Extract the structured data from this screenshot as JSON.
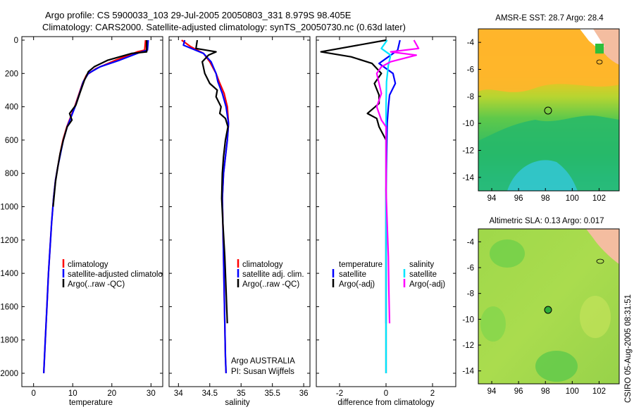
{
  "title": {
    "line1": "Argo profile: CS 5900033_103 29-Jul-2005 20050803_331 8.979S 98.405E",
    "line2": "Climatology: CARS2000. Satellite-adjusted climatology: synTS_20050730.nc (0.63d later)"
  },
  "side_label": "CSIRO 05-Aug-2005 08:31:51",
  "colors": {
    "red": "#ff0000",
    "blue": "#0000ff",
    "black": "#000000",
    "cyan": "#00e5ff",
    "magenta": "#ff00ff"
  },
  "chart_data": [
    {
      "type": "line",
      "name": "temperature-panel",
      "xlabel": "temperature",
      "xlim": [
        -3,
        33
      ],
      "ylim": [
        0,
        2100
      ],
      "y_reversed": true,
      "xticks": [
        0,
        10,
        20,
        30
      ],
      "yticks": [
        0,
        200,
        400,
        600,
        800,
        1000,
        1200,
        1400,
        1600,
        1800,
        2000
      ],
      "legend": [
        "climatology",
        "satellite-adjusted climatology",
        "Argo(..raw -QC)"
      ],
      "series": [
        {
          "name": "climatology",
          "color": "red",
          "points": [
            [
              28.6,
              0
            ],
            [
              28.4,
              60
            ],
            [
              26.5,
              70
            ],
            [
              21,
              120
            ],
            [
              16,
              170
            ],
            [
              13.5,
              210
            ],
            [
              12.5,
              260
            ],
            [
              11.5,
              330
            ],
            [
              10.5,
              400
            ],
            [
              9.5,
              460
            ],
            [
              8.5,
              520
            ],
            [
              7.5,
              600
            ],
            [
              6.8,
              680
            ],
            [
              6.2,
              760
            ],
            [
              5.6,
              840
            ],
            [
              5.1,
              950
            ],
            [
              4.6,
              1100
            ],
            [
              4.2,
              1250
            ],
            [
              3.8,
              1400
            ],
            [
              3.4,
              1600
            ],
            [
              3.0,
              1800
            ],
            [
              2.6,
              2000
            ]
          ]
        },
        {
          "name": "satellite-adjusted climatology",
          "color": "blue",
          "points": [
            [
              29.3,
              0
            ],
            [
              29.1,
              60
            ],
            [
              27,
              75
            ],
            [
              22,
              120
            ],
            [
              17,
              160
            ],
            [
              14,
              200
            ],
            [
              12.7,
              250
            ],
            [
              11.6,
              330
            ],
            [
              10.6,
              400
            ],
            [
              9.6,
              460
            ],
            [
              8.6,
              520
            ],
            [
              7.6,
              600
            ],
            [
              6.9,
              680
            ],
            [
              6.2,
              760
            ],
            [
              5.6,
              840
            ],
            [
              5.1,
              950
            ],
            [
              4.6,
              1100
            ],
            [
              4.2,
              1250
            ],
            [
              3.8,
              1400
            ],
            [
              3.4,
              1600
            ],
            [
              3.0,
              1800
            ],
            [
              2.6,
              2000
            ]
          ]
        },
        {
          "name": "Argo(..raw -QC)",
          "color": "black",
          "points": [
            [
              28.9,
              0
            ],
            [
              28.9,
              70
            ],
            [
              25,
              80
            ],
            [
              19,
              120
            ],
            [
              15.5,
              160
            ],
            [
              14,
              190
            ],
            [
              13,
              240
            ],
            [
              11.8,
              320
            ],
            [
              10.8,
              390
            ],
            [
              9.2,
              440
            ],
            [
              9.8,
              480
            ],
            [
              8.6,
              520
            ],
            [
              7.6,
              600
            ],
            [
              6.8,
              680
            ],
            [
              6.2,
              760
            ],
            [
              5.6,
              850
            ],
            [
              5.0,
              1000
            ]
          ]
        }
      ]
    },
    {
      "type": "line",
      "name": "salinity-panel",
      "xlabel": "salinity",
      "xlim": [
        33.85,
        36.1
      ],
      "ylim": [
        0,
        2100
      ],
      "y_reversed": true,
      "xticks": [
        34,
        34.5,
        35,
        35.5,
        36
      ],
      "legend": [
        "climatology",
        "satellite adj. clim.",
        "Argo(..raw -QC)"
      ],
      "annotations": [
        "Argo AUSTRALIA",
        "PI: Susan Wijffels"
      ],
      "series": [
        {
          "name": "climatology",
          "color": "red",
          "points": [
            [
              34.05,
              0
            ],
            [
              34.2,
              40
            ],
            [
              34.4,
              80
            ],
            [
              34.5,
              130
            ],
            [
              34.6,
              200
            ],
            [
              34.65,
              250
            ],
            [
              34.73,
              320
            ],
            [
              34.78,
              400
            ],
            [
              34.8,
              500
            ],
            [
              34.78,
              600
            ],
            [
              34.75,
              700
            ],
            [
              34.72,
              800
            ],
            [
              34.7,
              950
            ],
            [
              34.71,
              1100
            ],
            [
              34.72,
              1300
            ],
            [
              34.73,
              1500
            ],
            [
              34.74,
              1700
            ],
            [
              34.75,
              1900
            ],
            [
              34.76,
              2000
            ]
          ]
        },
        {
          "name": "satellite adj. clim.",
          "color": "blue",
          "points": [
            [
              34.1,
              0
            ],
            [
              34.08,
              30
            ],
            [
              34.4,
              80
            ],
            [
              34.52,
              130
            ],
            [
              34.6,
              200
            ],
            [
              34.63,
              250
            ],
            [
              34.7,
              320
            ],
            [
              34.76,
              400
            ],
            [
              34.8,
              500
            ],
            [
              34.78,
              600
            ],
            [
              34.75,
              700
            ],
            [
              34.72,
              800
            ],
            [
              34.7,
              950
            ],
            [
              34.71,
              1100
            ],
            [
              34.72,
              1300
            ],
            [
              34.73,
              1500
            ],
            [
              34.74,
              1700
            ],
            [
              34.75,
              1900
            ],
            [
              34.76,
              2000
            ]
          ]
        },
        {
          "name": "Argo(..raw -QC)",
          "color": "black",
          "points": [
            [
              34.3,
              0
            ],
            [
              34.28,
              50
            ],
            [
              34.6,
              70
            ],
            [
              34.48,
              90
            ],
            [
              34.38,
              130
            ],
            [
              34.42,
              200
            ],
            [
              34.5,
              260
            ],
            [
              34.62,
              300
            ],
            [
              34.6,
              340
            ],
            [
              34.68,
              400
            ],
            [
              34.66,
              440
            ],
            [
              34.75,
              470
            ],
            [
              34.79,
              520
            ],
            [
              34.75,
              600
            ],
            [
              34.72,
              700
            ],
            [
              34.7,
              800
            ],
            [
              34.69,
              950
            ],
            [
              34.71,
              1100
            ],
            [
              34.74,
              1300
            ],
            [
              34.76,
              1500
            ],
            [
              34.78,
              1700
            ]
          ]
        }
      ]
    },
    {
      "type": "line",
      "name": "difference-panel",
      "xlabel": "difference from climatology",
      "xlim": [
        -3,
        3
      ],
      "ylim": [
        0,
        2100
      ],
      "y_reversed": true,
      "xticks": [
        -2,
        0,
        2
      ],
      "legend_left": {
        "title": "temperature",
        "items": [
          "satellite",
          "Argo(-adj)"
        ]
      },
      "legend_right": {
        "title": "salinity",
        "items": [
          "satellite",
          "Argo(-adj)"
        ]
      },
      "series": [
        {
          "name": "temperature satellite",
          "color": "blue",
          "points": [
            [
              0.6,
              0
            ],
            [
              0.5,
              60
            ],
            [
              0.1,
              100
            ],
            [
              -0.3,
              140
            ],
            [
              0.3,
              200
            ],
            [
              0.4,
              260
            ],
            [
              0.15,
              330
            ],
            [
              0.1,
              400
            ],
            [
              0.05,
              500
            ],
            [
              0.02,
              700
            ],
            [
              0.0,
              900
            ],
            [
              0.0,
              1200
            ],
            [
              0.0,
              1500
            ],
            [
              0.0,
              1700
            ]
          ]
        },
        {
          "name": "temperature Argo(-adj)",
          "color": "black",
          "points": [
            [
              0,
              0
            ],
            [
              -2.8,
              70
            ],
            [
              -1.5,
              100
            ],
            [
              -0.6,
              140
            ],
            [
              -0.2,
              200
            ],
            [
              -0.5,
              260
            ],
            [
              -0.3,
              330
            ],
            [
              -0.3,
              380
            ],
            [
              -0.8,
              440
            ],
            [
              -0.4,
              470
            ],
            [
              -0.3,
              520
            ],
            [
              0.0,
              600
            ],
            [
              0.0,
              700
            ],
            [
              0.0,
              800
            ],
            [
              0.0,
              1000
            ],
            [
              0.0,
              1200
            ],
            [
              0.0,
              1400
            ],
            [
              0.0,
              1600
            ],
            [
              0.0,
              1800
            ],
            [
              0.0,
              2000
            ]
          ]
        },
        {
          "name": "salinity satellite",
          "color": "cyan",
          "points": [
            [
              0.05,
              0
            ],
            [
              -0.2,
              50
            ],
            [
              0.2,
              90
            ],
            [
              0.1,
              150
            ],
            [
              0.02,
              250
            ],
            [
              0.0,
              400
            ],
            [
              0.0,
              600
            ],
            [
              0.0,
              800
            ],
            [
              0.0,
              1000
            ],
            [
              0.0,
              1300
            ],
            [
              0.0,
              1600
            ],
            [
              0.0,
              1800
            ],
            [
              0.0,
              2000
            ]
          ]
        },
        {
          "name": "salinity Argo(-adj)",
          "color": "magenta",
          "points": [
            [
              1.2,
              0
            ],
            [
              1.4,
              50
            ],
            [
              0.2,
              70
            ],
            [
              1.3,
              90
            ],
            [
              0.2,
              130
            ],
            [
              -0.2,
              160
            ],
            [
              -0.4,
              200
            ],
            [
              -0.3,
              260
            ],
            [
              -0.2,
              320
            ],
            [
              -0.4,
              400
            ],
            [
              -0.3,
              440
            ],
            [
              -0.2,
              480
            ],
            [
              0.0,
              520
            ],
            [
              0.0,
              700
            ],
            [
              0.0,
              900
            ],
            [
              0.05,
              1100
            ],
            [
              0.1,
              1300
            ],
            [
              0.12,
              1500
            ],
            [
              0.15,
              1700
            ]
          ]
        }
      ]
    },
    {
      "type": "heatmap",
      "name": "sst-map",
      "title": "AMSR-E SST: 28.7 Argo: 28.4",
      "xticks": [
        94,
        96,
        98,
        100,
        102
      ],
      "yticks": [
        -4,
        -6,
        -8,
        -10,
        -12,
        -14
      ],
      "xlim": [
        93,
        103.5
      ],
      "ylim": [
        -15,
        -3
      ],
      "argo_marker": [
        98.4,
        -9.0
      ]
    },
    {
      "type": "heatmap",
      "name": "sla-map",
      "title": "Altimetric SLA: 0.13 Argo: 0.017",
      "xticks": [
        94,
        96,
        98,
        100,
        102
      ],
      "yticks": [
        -4,
        -6,
        -8,
        -10,
        -12,
        -14
      ],
      "xlim": [
        93,
        103.5
      ],
      "ylim": [
        -15,
        -3
      ],
      "argo_marker": [
        98.4,
        -9.0
      ]
    }
  ]
}
